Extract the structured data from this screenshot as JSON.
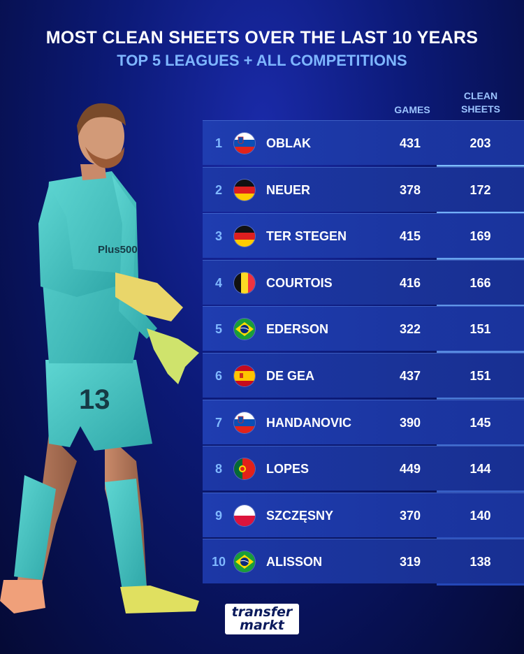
{
  "title": "MOST CLEAN SHEETS OVER THE LAST 10 YEARS",
  "subtitle": "TOP 5 LEAGUES + ALL COMPETITIONS",
  "columns": {
    "games": "GAMES",
    "clean_sheets_1": "CLEAN",
    "clean_sheets_2": "SHEETS"
  },
  "player_shirt": {
    "number": "13",
    "sponsor": "Plus500"
  },
  "logo": {
    "line1": "transfer",
    "line2": "markt"
  },
  "colors": {
    "title": "#ffffff",
    "subtitle": "#7eb6ff",
    "rank": "#7fb8ff",
    "row_bg": "#1f3db0",
    "clean_col_top": "#6fb4ff",
    "clean_col_bottom": "#2447b8",
    "kit": "#49c9c6"
  },
  "chart_data": {
    "type": "table",
    "title": "MOST CLEAN SHEETS OVER THE LAST 10 YEARS",
    "subtitle": "TOP 5 LEAGUES + ALL COMPETITIONS",
    "columns": [
      "",
      "",
      "",
      "GAMES",
      "CLEAN SHEETS"
    ],
    "rows": [
      {
        "rank": "1",
        "flag": "slovenia-flag-icon",
        "name": "OBLAK",
        "games": 431,
        "clean_sheets": 203
      },
      {
        "rank": "2",
        "flag": "germany-flag-icon",
        "name": "NEUER",
        "games": 378,
        "clean_sheets": 172
      },
      {
        "rank": "3",
        "flag": "germany-flag-icon",
        "name": "TER STEGEN",
        "games": 415,
        "clean_sheets": 169
      },
      {
        "rank": "4",
        "flag": "belgium-flag-icon",
        "name": "COURTOIS",
        "games": 416,
        "clean_sheets": 166
      },
      {
        "rank": "5",
        "flag": "brazil-flag-icon",
        "name": "EDERSON",
        "games": 322,
        "clean_sheets": 151
      },
      {
        "rank": "6",
        "flag": "spain-flag-icon",
        "name": "DE GEA",
        "games": 437,
        "clean_sheets": 151
      },
      {
        "rank": "7",
        "flag": "slovenia-flag-icon",
        "name": "HANDANOVIC",
        "games": 390,
        "clean_sheets": 145
      },
      {
        "rank": "8",
        "flag": "portugal-flag-icon",
        "name": "LOPES",
        "games": 449,
        "clean_sheets": 144
      },
      {
        "rank": "9",
        "flag": "poland-flag-icon",
        "name": "SZCZĘSNY",
        "games": 370,
        "clean_sheets": 140
      },
      {
        "rank": "10",
        "flag": "brazil-flag-icon",
        "name": "ALISSON",
        "games": 319,
        "clean_sheets": 138
      }
    ]
  }
}
